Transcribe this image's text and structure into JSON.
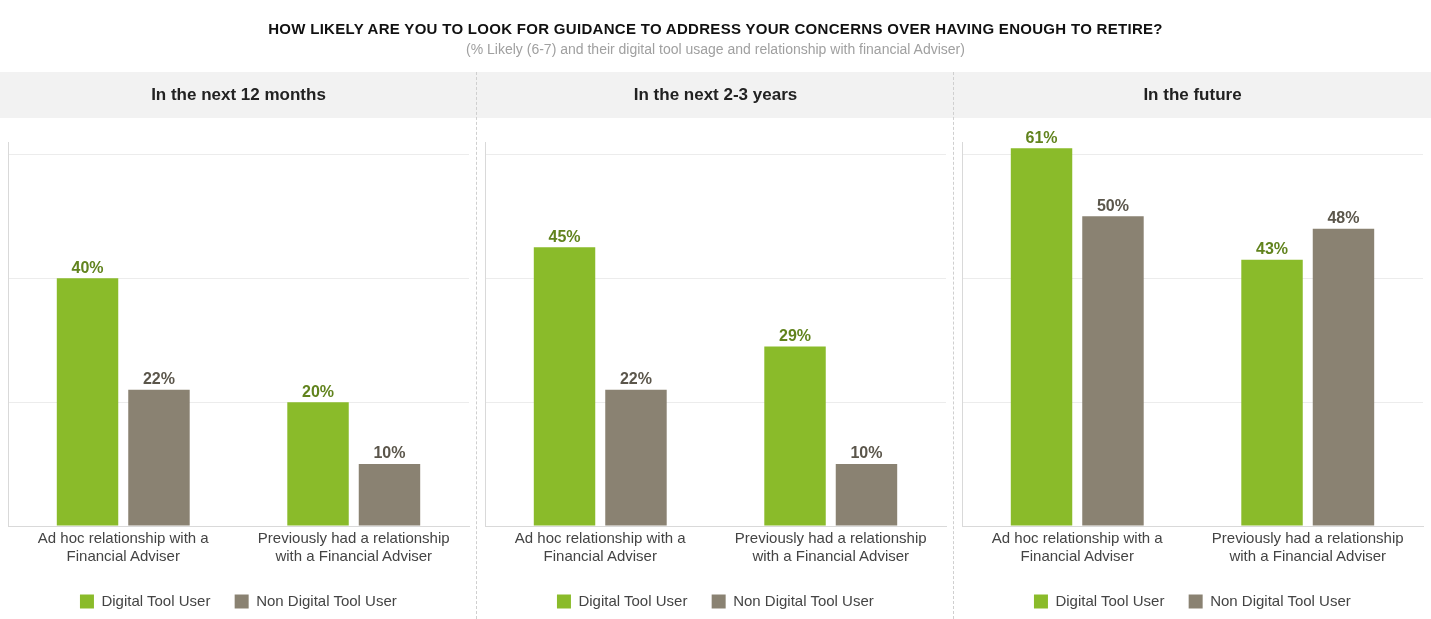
{
  "chart_data": [
    {
      "type": "bar",
      "title": "In the next 12 months",
      "annotations": [
        "HOW LIKELY ARE YOU TO LOOK FOR GUIDANCE TO ADDRESS YOUR CONCERNS OVER HAVING ENOUGH TO RETIRE?",
        "(% Likely (6-7) and their digital tool usage and relationship with financial Adviser)"
      ],
      "categories": [
        "Ad hoc relationship with a Financial Adviser",
        "Previously had a relationship with a Financial Adviser"
      ],
      "ylim": [
        0,
        62
      ],
      "series": [
        {
          "name": "Digital Tool User",
          "color": "#8abb2a",
          "values": [
            40,
            20
          ],
          "value_labels": [
            "40%",
            "20%"
          ]
        },
        {
          "name": "Non Digital Tool User",
          "color": "#8a8272",
          "values": [
            22,
            10
          ],
          "value_labels": [
            "22%",
            "10%"
          ]
        }
      ],
      "yticks": [
        {
          "value": 0,
          "label": null
        },
        {
          "value": 20,
          "label": null
        },
        {
          "value": 40,
          "label": null
        },
        {
          "value": 60,
          "label": null
        }
      ],
      "grid": "y",
      "tick_labels": "x",
      "legend": "bottom"
    },
    {
      "type": "bar",
      "title": "In the next 2-3 years",
      "categories": [
        "Ad hoc relationship with a Financial Adviser",
        "Previously had a relationship with a Financial Adviser"
      ],
      "ylim": [
        0,
        62
      ],
      "series": [
        {
          "name": "Digital Tool User",
          "color": "#8abb2a",
          "values": [
            45,
            29
          ],
          "value_labels": [
            "45%",
            "29%"
          ]
        },
        {
          "name": "Non Digital Tool User",
          "color": "#8a8272",
          "values": [
            22,
            10
          ],
          "value_labels": [
            "22%",
            "10%"
          ]
        }
      ],
      "yticks": [
        {
          "value": 0,
          "label": null
        },
        {
          "value": 20,
          "label": null
        },
        {
          "value": 40,
          "label": null
        },
        {
          "value": 60,
          "label": null
        }
      ],
      "grid": "y",
      "tick_labels": "x",
      "legend": "bottom"
    },
    {
      "type": "bar",
      "title": "In the future",
      "categories": [
        "Ad hoc relationship with a Financial Adviser",
        "Previously had a relationship with a Financial Adviser"
      ],
      "ylim": [
        0,
        62
      ],
      "series": [
        {
          "name": "Digital Tool User",
          "color": "#8abb2a",
          "values": [
            61,
            43
          ],
          "value_labels": [
            "61%",
            "43%"
          ]
        },
        {
          "name": "Non Digital Tool User",
          "color": "#8a8272",
          "values": [
            50,
            48
          ],
          "value_labels": [
            "50%",
            "48%"
          ]
        }
      ],
      "yticks": [
        {
          "value": 0,
          "label": null
        },
        {
          "value": 20,
          "label": null
        },
        {
          "value": 40,
          "label": null
        },
        {
          "value": 60,
          "label": null
        }
      ],
      "grid": "y",
      "tick_labels": "x",
      "legend": "bottom"
    }
  ]
}
